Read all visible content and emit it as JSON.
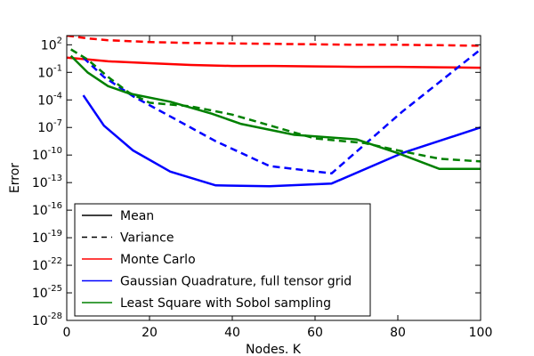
{
  "chart_data": {
    "type": "line",
    "xlabel": "Nodes. K",
    "ylabel": "Error",
    "xlim": [
      0,
      100
    ],
    "ylim_log10": [
      -28,
      3
    ],
    "yscale": "log",
    "x_ticks": [
      0,
      20,
      40,
      60,
      80,
      100
    ],
    "y_ticks": [
      {
        "base": "10",
        "exp": "2",
        "log10": 2
      },
      {
        "base": "10",
        "exp": "-1",
        "log10": -1
      },
      {
        "base": "10",
        "exp": "-4",
        "log10": -4
      },
      {
        "base": "10",
        "exp": "-7",
        "log10": -7
      },
      {
        "base": "10",
        "exp": "-10",
        "log10": -10
      },
      {
        "base": "10",
        "exp": "-13",
        "log10": -13
      },
      {
        "base": "10",
        "exp": "-16",
        "log10": -16
      },
      {
        "base": "10",
        "exp": "-19",
        "log10": -19
      },
      {
        "base": "10",
        "exp": "-22",
        "log10": -22
      },
      {
        "base": "10",
        "exp": "-25",
        "log10": -25
      },
      {
        "base": "10",
        "exp": "-28",
        "log10": -28
      }
    ],
    "grid": false,
    "legend_position": "lower-left",
    "legend": [
      {
        "label": "Mean",
        "color": "#000000",
        "style": "solid"
      },
      {
        "label": "Variance",
        "color": "#000000",
        "style": "dashed"
      },
      {
        "label": "Monte Carlo",
        "color": "#ff0000",
        "style": "solid"
      },
      {
        "label": "Gaussian Quadrature, full tensor grid",
        "color": "#0000ff",
        "style": "solid"
      },
      {
        "label": "Least Square with Sobol sampling",
        "color": "#008000",
        "style": "solid"
      }
    ],
    "series": [
      {
        "method": "Monte Carlo",
        "stat": "mean",
        "color": "#ff0000",
        "style": "solid",
        "x": [
          0,
          5,
          10,
          20,
          30,
          40,
          50,
          60,
          70,
          80,
          90,
          100
        ],
        "log10_y": [
          0.6,
          0.4,
          0.2,
          0.0,
          -0.2,
          -0.3,
          -0.3,
          -0.35,
          -0.4,
          -0.4,
          -0.45,
          -0.5
        ]
      },
      {
        "method": "Monte Carlo",
        "stat": "variance",
        "color": "#ff0000",
        "style": "dashed",
        "x": [
          0,
          5,
          10,
          20,
          30,
          40,
          50,
          60,
          70,
          80,
          90,
          100
        ],
        "log10_y": [
          3.0,
          2.7,
          2.5,
          2.3,
          2.2,
          2.15,
          2.1,
          2.05,
          2.0,
          2.0,
          1.95,
          1.9
        ]
      },
      {
        "method": "Gaussian Quadrature, full tensor grid",
        "stat": "mean",
        "color": "#0000ff",
        "style": "solid",
        "x": [
          4,
          9,
          16,
          25,
          36,
          49,
          64,
          81,
          100
        ],
        "log10_y": [
          -3.5,
          -6.8,
          -9.5,
          -11.8,
          -13.3,
          -13.4,
          -13.1,
          -9.8,
          -7.0
        ]
      },
      {
        "method": "Gaussian Quadrature, full tensor grid",
        "stat": "variance",
        "color": "#0000ff",
        "style": "dashed",
        "x": [
          4,
          9,
          16,
          25,
          36,
          49,
          64,
          81,
          100
        ],
        "log10_y": [
          0.6,
          -1.5,
          -3.6,
          -5.8,
          -8.5,
          -11.2,
          -12.0,
          -5.3,
          1.5
        ]
      },
      {
        "method": "Least Square with Sobol sampling",
        "stat": "mean",
        "color": "#008000",
        "style": "solid",
        "x": [
          1,
          5,
          10,
          15,
          25,
          35,
          42,
          55,
          70,
          80,
          90,
          100
        ],
        "log10_y": [
          0.8,
          -1.0,
          -2.5,
          -3.3,
          -4.2,
          -5.5,
          -6.6,
          -7.8,
          -8.3,
          -9.8,
          -11.5,
          -11.5
        ]
      },
      {
        "method": "Least Square with Sobol sampling",
        "stat": "variance",
        "color": "#008000",
        "style": "dashed",
        "x": [
          1,
          5,
          10,
          15,
          20,
          30,
          40,
          50,
          60,
          72,
          80,
          90,
          100
        ],
        "log10_y": [
          1.5,
          0.4,
          -1.5,
          -3.2,
          -4.3,
          -4.7,
          -5.6,
          -6.9,
          -8.2,
          -8.7,
          -9.5,
          -10.4,
          -10.7
        ]
      }
    ]
  }
}
